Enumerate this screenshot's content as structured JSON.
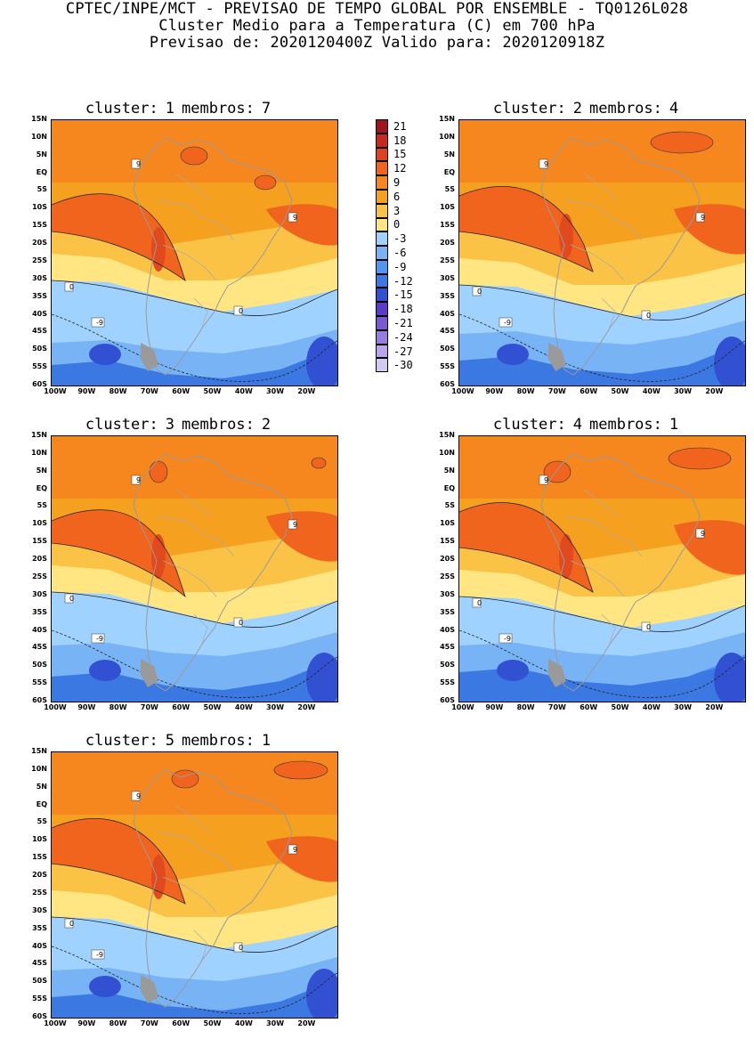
{
  "header": {
    "line1": "CPTEC/INPE/MCT - PREVISAO DE TEMPO GLOBAL POR ENSEMBLE - TQ0126L028",
    "line2": "Cluster Medio para a Temperatura (C) em 700 hPa",
    "line3": "Previsao de: 2020120400Z   Valido para: 2020120918Z"
  },
  "axes": {
    "lat_labels": [
      "15N",
      "10N",
      "5N",
      "EQ",
      "5S",
      "10S",
      "15S",
      "20S",
      "25S",
      "30S",
      "35S",
      "40S",
      "45S",
      "50S",
      "55S",
      "60S"
    ],
    "lon_labels": [
      "100W",
      "90W",
      "80W",
      "70W",
      "60W",
      "50W",
      "40W",
      "30W",
      "20W"
    ]
  },
  "colorbar": {
    "labels": [
      "21",
      "18",
      "15",
      "12",
      "9",
      "6",
      "3",
      "0",
      "-3",
      "-6",
      "-9",
      "-12",
      "-15",
      "-18",
      "-21",
      "-24",
      "-27",
      "-30"
    ],
    "colors": [
      "#a0141e",
      "#c8281e",
      "#e1411e",
      "#f0641e",
      "#f5871e",
      "#f5a01e",
      "#fac345",
      "#ffe682",
      "#a0d2ff",
      "#78b4f5",
      "#5096f0",
      "#3c78e1",
      "#3250d2",
      "#5a3cc8",
      "#785ad2",
      "#967de1",
      "#b9a5eb",
      "#d2c8f0"
    ]
  },
  "panels": [
    {
      "cluster_label": "cluster:",
      "cluster": "1",
      "members_label": "membros:",
      "members": "7"
    },
    {
      "cluster_label": "cluster:",
      "cluster": "2",
      "members_label": "membros:",
      "members": "4"
    },
    {
      "cluster_label": "cluster:",
      "cluster": "3",
      "members_label": "membros:",
      "members": "2"
    },
    {
      "cluster_label": "cluster:",
      "cluster": "4",
      "members_label": "membros:",
      "members": "1"
    },
    {
      "cluster_label": "cluster:",
      "cluster": "5",
      "members_label": "membros:",
      "members": "1"
    }
  ],
  "contour_labels": {
    "nine": "9",
    "zero": "0",
    "minus_nine": "-9"
  }
}
